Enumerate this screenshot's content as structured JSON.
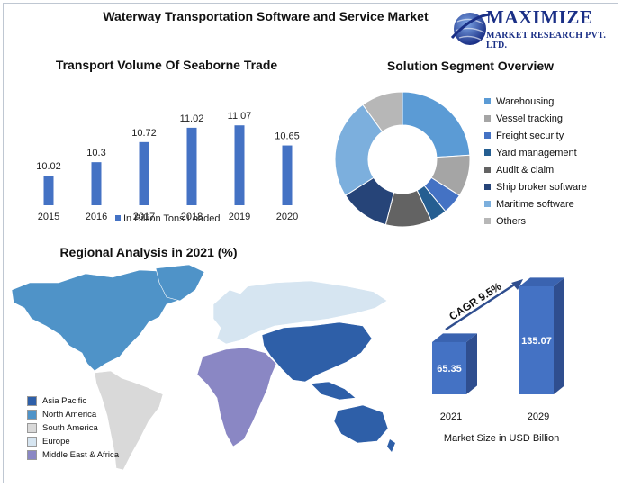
{
  "header": {
    "title": "Waterway Transportation Software and Service Market",
    "logo_name": "MAXIMIZE",
    "logo_sub": "MARKET RESEARCH PVT. LTD."
  },
  "chart_data": [
    {
      "type": "bar",
      "title": "Transport Volume Of Seaborne Trade",
      "categories": [
        "2015",
        "2016",
        "2017",
        "2018",
        "2019",
        "2020"
      ],
      "series": [
        {
          "name": "In Billion Tons Loaded",
          "values": [
            10.02,
            10.3,
            10.72,
            11.02,
            11.07,
            10.65
          ],
          "color": "#4472c4"
        }
      ],
      "data_labels": [
        "10.02",
        "10.3",
        "10.72",
        "11.02",
        "11.07",
        "10.65"
      ],
      "ylim": [
        9.4,
        11.3
      ],
      "legend": "bottom"
    },
    {
      "type": "pie",
      "title": "Solution Segment Overview",
      "categories": [
        "Warehousing",
        "Vessel tracking",
        "Freight security",
        "Yard management",
        "Audit & claim",
        "Ship broker software",
        "Maritime software",
        "Others"
      ],
      "values": [
        24,
        10,
        5,
        4,
        11,
        12,
        24,
        10
      ],
      "colors": [
        "#5b9bd5",
        "#a5a5a5",
        "#4472c4",
        "#255e91",
        "#636363",
        "#264478",
        "#7cafdd",
        "#b7b7b7"
      ],
      "legend": "right"
    },
    {
      "type": "bar",
      "title": "",
      "categories": [
        "2021",
        "2029"
      ],
      "values": [
        65.35,
        135.07
      ],
      "data_labels": [
        "65.35",
        "135.07"
      ],
      "xlabel": "Market Size in USD Billion",
      "annotation": "CAGR 9.5%",
      "color": "#4472c4",
      "side_color": "#2f4e8f"
    }
  ],
  "map": {
    "title": "Regional Analysis in 2021 (%)",
    "legend": [
      {
        "label": "Asia Pacific",
        "color": "#2e5fa8"
      },
      {
        "label": "North America",
        "color": "#4f93c8"
      },
      {
        "label": "South America",
        "color": "#d9d9d9"
      },
      {
        "label": "Europe",
        "color": "#d6e5f1"
      },
      {
        "label": "Middle East & Africa",
        "color": "#8a87c4"
      }
    ]
  }
}
